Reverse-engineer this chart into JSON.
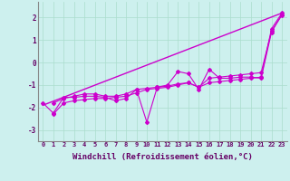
{
  "xlabel": "Windchill (Refroidissement éolien,°C)",
  "xlim": [
    -0.5,
    23.5
  ],
  "ylim": [
    -3.5,
    2.7
  ],
  "yticks": [
    -3,
    -2,
    -1,
    0,
    1,
    2
  ],
  "xticks": [
    0,
    1,
    2,
    3,
    4,
    5,
    6,
    7,
    8,
    9,
    10,
    11,
    12,
    13,
    14,
    15,
    16,
    17,
    18,
    19,
    20,
    21,
    22,
    23
  ],
  "bg_color": "#cdf0ee",
  "line_color": "#cc00cc",
  "series": [
    [
      null,
      -1.8,
      -1.6,
      -1.5,
      -1.4,
      -1.4,
      -1.5,
      -1.5,
      -1.4,
      -1.2,
      -1.15,
      -1.1,
      -1.05,
      -0.95,
      -0.9,
      -1.1,
      -0.9,
      -0.85,
      -0.8,
      -0.75,
      -0.7,
      -0.65,
      1.5,
      2.2
    ],
    [
      null,
      -2.3,
      -1.8,
      -1.7,
      -1.65,
      -1.6,
      -1.6,
      -1.55,
      -1.5,
      -1.35,
      -1.2,
      -1.15,
      -1.1,
      -1.0,
      -0.9,
      -1.1,
      -0.7,
      -0.65,
      -0.6,
      -0.55,
      -0.5,
      -0.45,
      1.4,
      2.1
    ],
    [
      -1.8,
      -2.25,
      -1.55,
      -1.55,
      -1.5,
      -1.5,
      -1.55,
      -1.7,
      -1.6,
      -1.2,
      -2.65,
      -1.1,
      -1.0,
      -0.4,
      -0.5,
      -1.2,
      -0.3,
      -0.7,
      -0.7,
      -0.65,
      -0.65,
      -0.7,
      1.35,
      2.15
    ]
  ],
  "straight_line_x": [
    0,
    23
  ],
  "straight_line_y": [
    -1.9,
    2.2
  ],
  "grid_color": "#aaddcc",
  "tick_fontsize": 5.0,
  "xlabel_fontsize": 6.5
}
